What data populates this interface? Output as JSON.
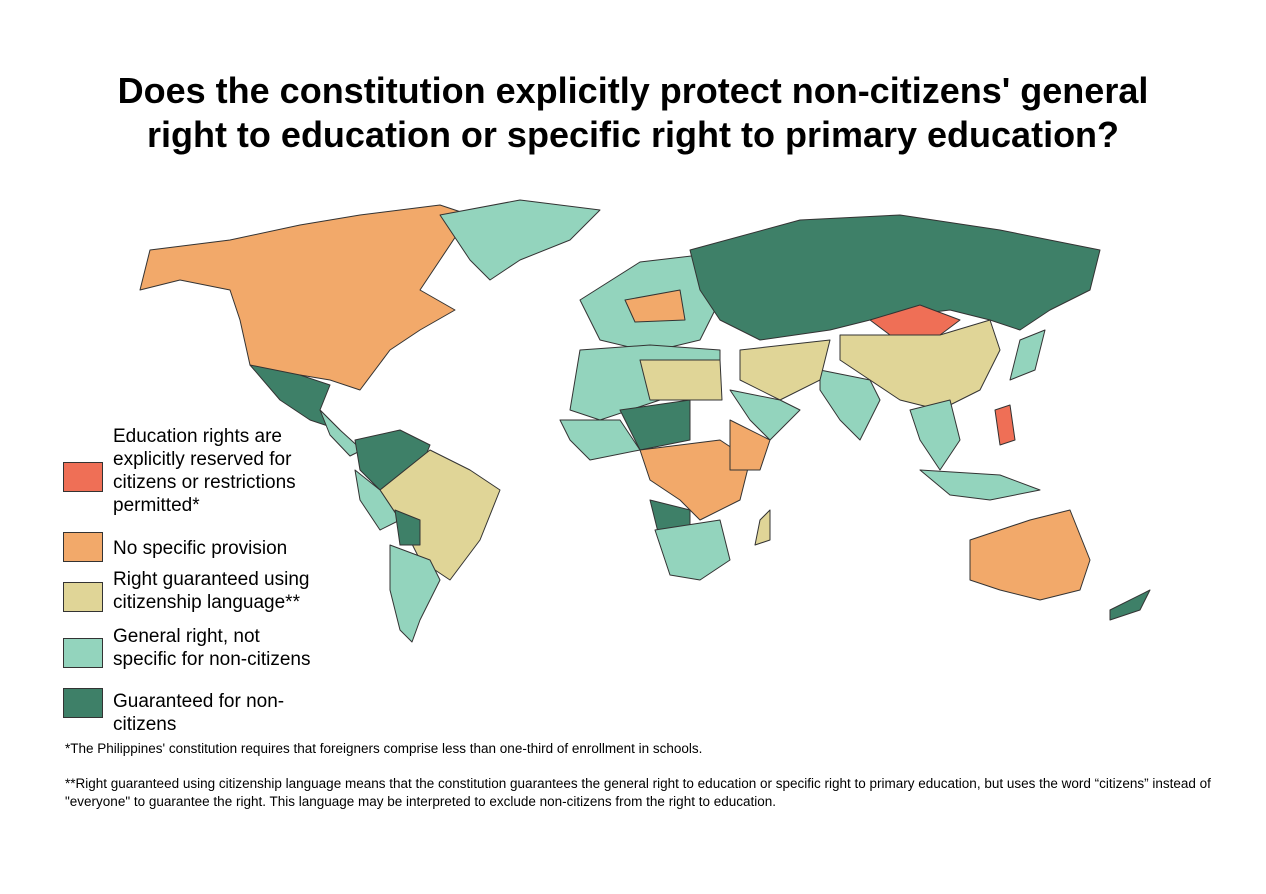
{
  "title_lines": [
    "Does the constitution explicitly protect non-citizens' general",
    "right to education or specific right to primary education?"
  ],
  "legend": [
    {
      "label": "Education rights are explicitly reserved for citizens or restrictions permitted*",
      "color": "#ef6f56"
    },
    {
      "label": "No specific provision",
      "color": "#f2a96a"
    },
    {
      "label": "Right guaranteed using citizenship language**",
      "color": "#e0d597"
    },
    {
      "label": "General right, not specific for non-citizens",
      "color": "#93d4bd"
    },
    {
      "label": "Guaranteed for non-citizens",
      "color": "#3e8068"
    }
  ],
  "footnotes": [
    "*The Philippines' constitution requires that foreigners comprise less than one-third of enrollment in schools.",
    "**Right guaranteed using citizenship language means that the constitution guarantees the general right to education or specific right to primary education, but uses the word “citizens” instead of \"everyone\" to guarantee the right. This language may be interpreted to exclude non-citizens from the right to education."
  ]
}
